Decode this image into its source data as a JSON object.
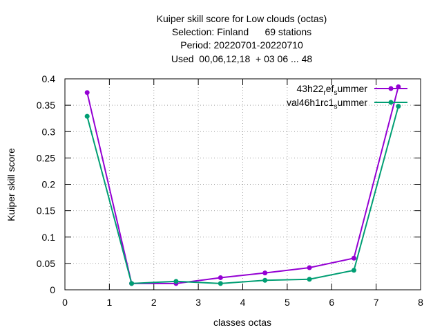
{
  "chart_data": {
    "type": "line",
    "title_lines": [
      "Kuiper skill score  for Low clouds (octas)",
      "Selection: Finland      69 stations",
      "Period: 20220701-20220710",
      "Used  00,06,12,18  + 03 06 ... 48"
    ],
    "xlabel": "classes octas",
    "ylabel": "Kuiper skill score",
    "xlim": [
      0,
      8
    ],
    "ylim": [
      0,
      0.4
    ],
    "xticks": [
      "0",
      "1",
      "2",
      "3",
      "4",
      "5",
      "6",
      "7",
      "8"
    ],
    "yticks": [
      "0",
      "0.05",
      "0.1",
      "0.15",
      "0.2",
      "0.25",
      "0.3",
      "0.35",
      "0.4"
    ],
    "grid": true,
    "legend_position": "top-right",
    "series": [
      {
        "name_parts": [
          "43h22",
          "r",
          "ef",
          "s",
          "ummer"
        ],
        "color": "#9400d3",
        "x": [
          0.5,
          1.5,
          2.5,
          3.5,
          4.5,
          5.5,
          6.5,
          7.5
        ],
        "values": [
          0.374,
          0.012,
          0.012,
          0.023,
          0.032,
          0.042,
          0.06,
          0.385
        ]
      },
      {
        "name_parts": [
          "val46h1rc1",
          "s",
          "ummer"
        ],
        "color": "#009e73",
        "x": [
          0.5,
          1.5,
          2.5,
          3.5,
          4.5,
          5.5,
          6.5,
          7.5
        ],
        "values": [
          0.329,
          0.012,
          0.016,
          0.012,
          0.018,
          0.02,
          0.037,
          0.348
        ]
      }
    ]
  }
}
